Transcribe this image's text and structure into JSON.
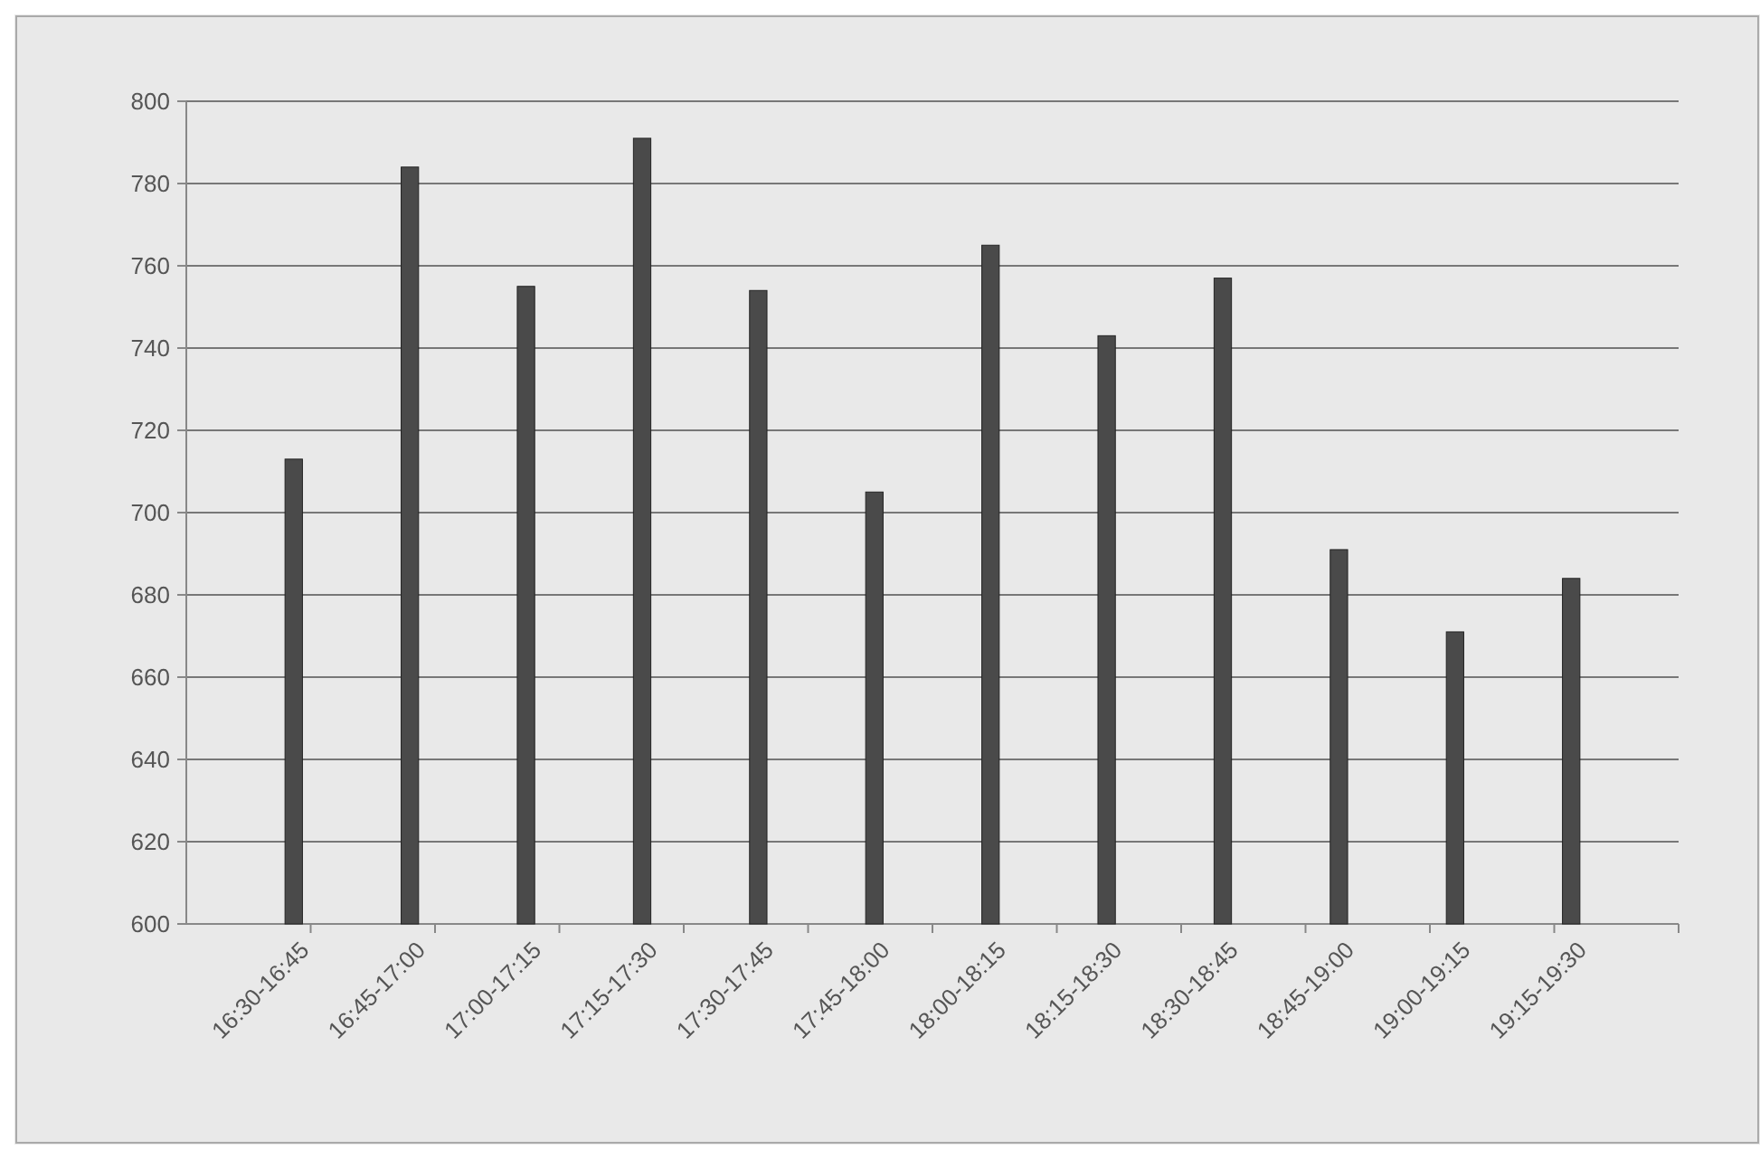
{
  "chart_data": {
    "type": "bar",
    "categories": [
      "16:30-16:45",
      "16:45-17:00",
      "17:00-17:15",
      "17:15-17:30",
      "17:30-17:45",
      "17:45-18:00",
      "18:00-18:15",
      "18:15-18:30",
      "18:30-18:45",
      "18:45-19:00",
      "19:00-19:15",
      "19:15-19:30"
    ],
    "values": [
      713,
      784,
      755,
      791,
      754,
      705,
      765,
      743,
      757,
      691,
      671,
      684
    ],
    "color": "#4a4a4a",
    "ylim": [
      600,
      800
    ],
    "yticks": [
      600,
      620,
      640,
      660,
      680,
      700,
      720,
      740,
      760,
      780,
      800
    ],
    "grid": "y"
  }
}
